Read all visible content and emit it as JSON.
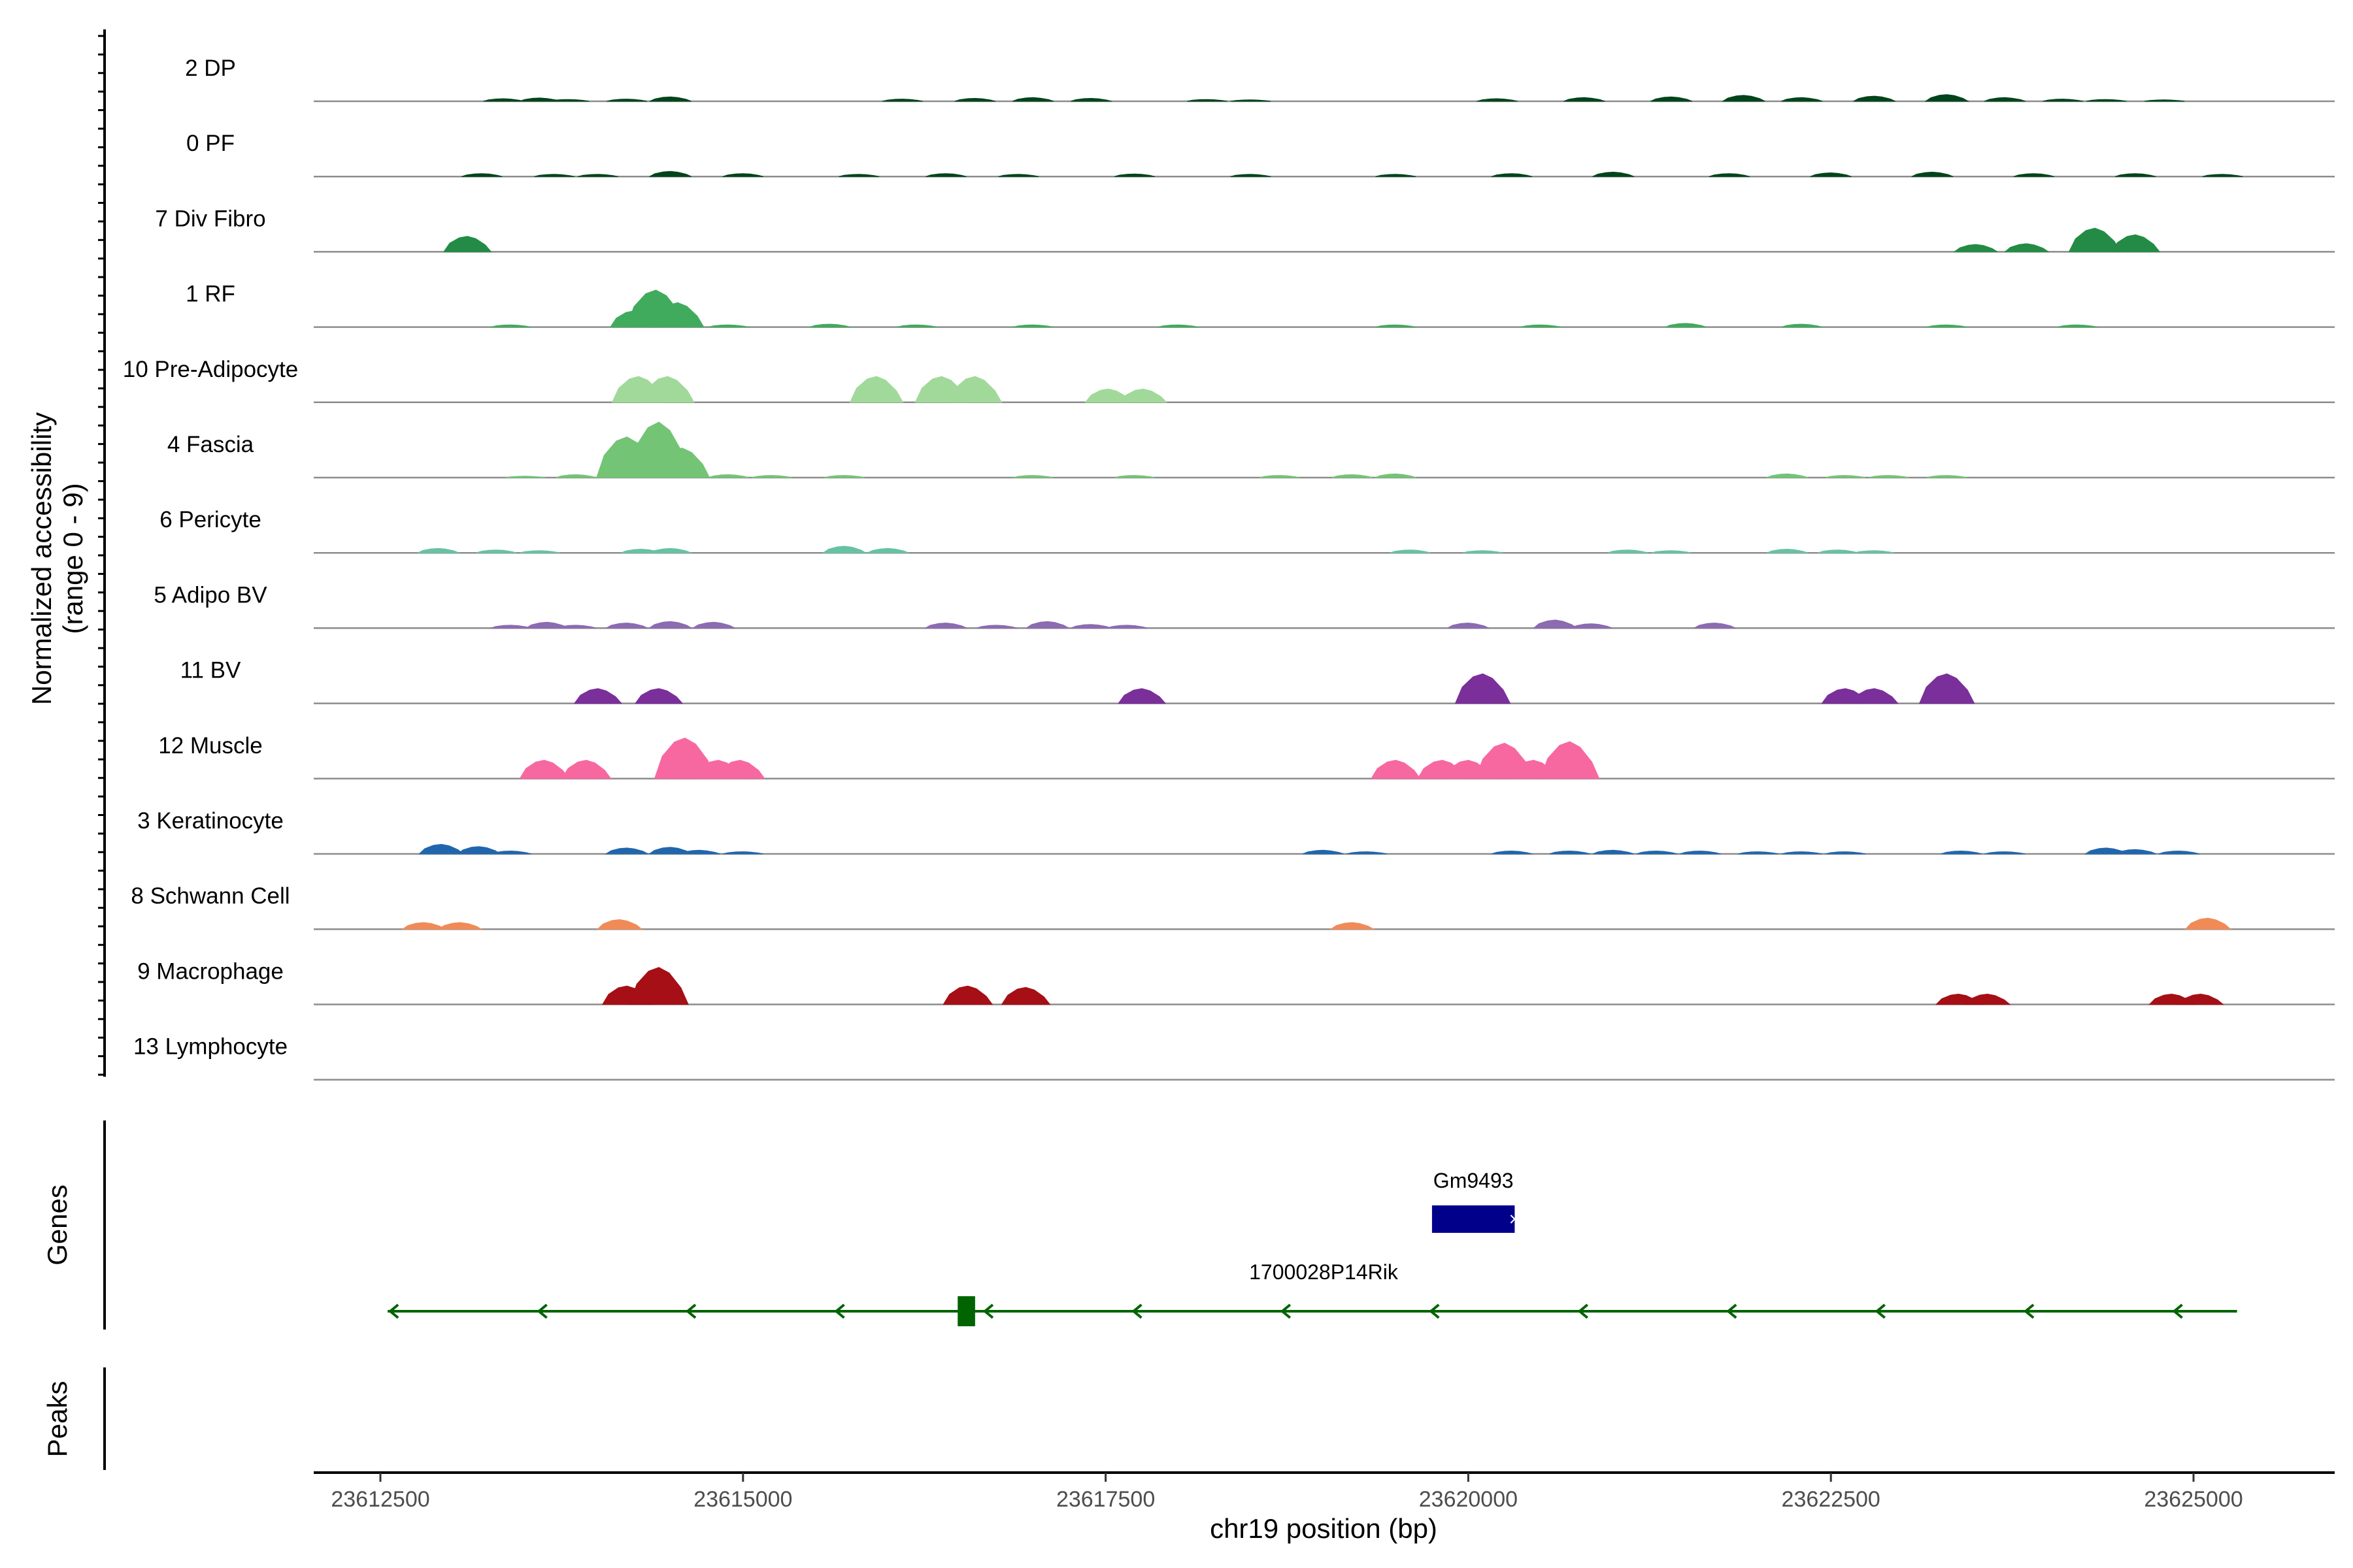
{
  "chart_data": {
    "type": "area",
    "title": "",
    "chromosome": "chr19",
    "xlabel": "chr19 position (bp)",
    "ylabel": "Normalized accessibility",
    "ylabel_range": "(range 0 - 9)",
    "xlim": [
      23612500,
      23626300
    ],
    "ylim": [
      0,
      9
    ],
    "x_ticks": [
      23612500,
      23615000,
      23617500,
      23620000,
      23622500,
      23625000
    ],
    "x_tick_labels": [
      "23612500",
      "23615000",
      "23617500",
      "23620000",
      "23622500",
      "23625000"
    ],
    "panel_labels": {
      "genes": "Genes",
      "peaks": "Peaks"
    },
    "tracks": [
      {
        "name": "2 DP",
        "color": "#00441b",
        "peaks": [
          [
            23613350,
            0.35
          ],
          [
            23613600,
            0.45
          ],
          [
            23613800,
            0.25
          ],
          [
            23614200,
            0.3
          ],
          [
            23614500,
            0.6
          ],
          [
            23616100,
            0.3
          ],
          [
            23616600,
            0.4
          ],
          [
            23617000,
            0.5
          ],
          [
            23617400,
            0.4
          ],
          [
            23618200,
            0.25
          ],
          [
            23618500,
            0.2
          ],
          [
            23620200,
            0.35
          ],
          [
            23620800,
            0.5
          ],
          [
            23621400,
            0.6
          ],
          [
            23621900,
            0.8
          ],
          [
            23622300,
            0.5
          ],
          [
            23622800,
            0.7
          ],
          [
            23623300,
            0.9
          ],
          [
            23623700,
            0.5
          ],
          [
            23624100,
            0.3
          ],
          [
            23624400,
            0.25
          ],
          [
            23624800,
            0.2
          ]
        ]
      },
      {
        "name": "0 PF",
        "color": "#00441b",
        "peaks": [
          [
            23613200,
            0.4
          ],
          [
            23613700,
            0.3
          ],
          [
            23614000,
            0.3
          ],
          [
            23614500,
            0.7
          ],
          [
            23615000,
            0.4
          ],
          [
            23615800,
            0.3
          ],
          [
            23616400,
            0.4
          ],
          [
            23616900,
            0.3
          ],
          [
            23617700,
            0.35
          ],
          [
            23618500,
            0.3
          ],
          [
            23619500,
            0.3
          ],
          [
            23620300,
            0.4
          ],
          [
            23621000,
            0.6
          ],
          [
            23621800,
            0.4
          ],
          [
            23622500,
            0.5
          ],
          [
            23623200,
            0.6
          ],
          [
            23623900,
            0.4
          ],
          [
            23624600,
            0.4
          ],
          [
            23625200,
            0.3
          ]
        ]
      },
      {
        "name": "7 Div Fibro",
        "color": "#238b45",
        "peaks": [
          [
            23613100,
            2.1
          ],
          [
            23623500,
            1.0
          ],
          [
            23623850,
            1.1
          ],
          [
            23624320,
            3.2
          ],
          [
            23624600,
            2.3
          ]
        ]
      },
      {
        "name": "1 RF",
        "color": "#41ab5d",
        "peaks": [
          [
            23613400,
            0.3
          ],
          [
            23614250,
            2.2
          ],
          [
            23614400,
            5.0
          ],
          [
            23614550,
            3.3
          ],
          [
            23614900,
            0.3
          ],
          [
            23615600,
            0.4
          ],
          [
            23616200,
            0.3
          ],
          [
            23617000,
            0.3
          ],
          [
            23618000,
            0.3
          ],
          [
            23619500,
            0.3
          ],
          [
            23620500,
            0.3
          ],
          [
            23621500,
            0.5
          ],
          [
            23622300,
            0.4
          ],
          [
            23623300,
            0.3
          ],
          [
            23624200,
            0.3
          ]
        ]
      },
      {
        "name": "10 Pre-Adipocyte",
        "color": "#a1d99b",
        "peaks": [
          [
            23614280,
            3.5
          ],
          [
            23614480,
            3.5
          ],
          [
            23615920,
            3.5
          ],
          [
            23616370,
            3.5
          ],
          [
            23616600,
            3.5
          ],
          [
            23617520,
            1.8
          ],
          [
            23617760,
            1.8
          ]
        ]
      },
      {
        "name": "4 Fascia",
        "color": "#74c476",
        "peaks": [
          [
            23613500,
            0.2
          ],
          [
            23613850,
            0.4
          ],
          [
            23614200,
            5.5
          ],
          [
            23614420,
            7.5
          ],
          [
            23614580,
            4.0
          ],
          [
            23614900,
            0.4
          ],
          [
            23615200,
            0.3
          ],
          [
            23615700,
            0.3
          ],
          [
            23617000,
            0.3
          ],
          [
            23617700,
            0.3
          ],
          [
            23618700,
            0.3
          ],
          [
            23619200,
            0.4
          ],
          [
            23619500,
            0.5
          ],
          [
            23622200,
            0.5
          ],
          [
            23622600,
            0.3
          ],
          [
            23622900,
            0.3
          ],
          [
            23623300,
            0.3
          ]
        ]
      },
      {
        "name": "6 Pericyte",
        "color": "#66c2a4",
        "peaks": [
          [
            23612900,
            0.6
          ],
          [
            23613300,
            0.4
          ],
          [
            23613600,
            0.3
          ],
          [
            23614300,
            0.5
          ],
          [
            23614500,
            0.6
          ],
          [
            23615700,
            0.9
          ],
          [
            23616000,
            0.6
          ],
          [
            23619600,
            0.4
          ],
          [
            23620100,
            0.3
          ],
          [
            23621100,
            0.4
          ],
          [
            23621400,
            0.3
          ],
          [
            23622200,
            0.5
          ],
          [
            23622550,
            0.4
          ],
          [
            23622800,
            0.3
          ]
        ]
      },
      {
        "name": "5 Adipo BV",
        "color": "#8c6bb1",
        "peaks": [
          [
            23613400,
            0.4
          ],
          [
            23613650,
            0.8
          ],
          [
            23613850,
            0.4
          ],
          [
            23614200,
            0.7
          ],
          [
            23614500,
            0.9
          ],
          [
            23614800,
            0.8
          ],
          [
            23616400,
            0.7
          ],
          [
            23616750,
            0.4
          ],
          [
            23617100,
            0.9
          ],
          [
            23617400,
            0.5
          ],
          [
            23617650,
            0.4
          ],
          [
            23620000,
            0.7
          ],
          [
            23620600,
            1.1
          ],
          [
            23620850,
            0.6
          ],
          [
            23621700,
            0.7
          ]
        ]
      },
      {
        "name": "11 BV",
        "color": "#7a2f9a",
        "peaks": [
          [
            23614000,
            2.0
          ],
          [
            23614420,
            2.0
          ],
          [
            23617750,
            2.0
          ],
          [
            23620100,
            4.0
          ],
          [
            23622600,
            2.0
          ],
          [
            23622800,
            2.0
          ],
          [
            23623300,
            4.0
          ]
        ]
      },
      {
        "name": "12 Muscle",
        "color": "#f768a1",
        "peaks": [
          [
            23613630,
            2.5
          ],
          [
            23613920,
            2.5
          ],
          [
            23614600,
            5.5
          ],
          [
            23614830,
            2.5
          ],
          [
            23614980,
            2.5
          ],
          [
            23619500,
            2.5
          ],
          [
            23619820,
            2.5
          ],
          [
            23620000,
            2.5
          ],
          [
            23620250,
            4.8
          ],
          [
            23620450,
            2.5
          ],
          [
            23620700,
            5.0
          ]
        ]
      },
      {
        "name": "3 Keratinocyte",
        "color": "#2166ac",
        "peaks": [
          [
            23612920,
            1.3
          ],
          [
            23613180,
            1.0
          ],
          [
            23613400,
            0.4
          ],
          [
            23614200,
            0.8
          ],
          [
            23614500,
            0.9
          ],
          [
            23614700,
            0.5
          ],
          [
            23615000,
            0.3
          ],
          [
            23619000,
            0.5
          ],
          [
            23619300,
            0.3
          ],
          [
            23620300,
            0.4
          ],
          [
            23620700,
            0.4
          ],
          [
            23621000,
            0.5
          ],
          [
            23621300,
            0.4
          ],
          [
            23621600,
            0.4
          ],
          [
            23622000,
            0.3
          ],
          [
            23622300,
            0.3
          ],
          [
            23622600,
            0.3
          ],
          [
            23623400,
            0.4
          ],
          [
            23623700,
            0.3
          ],
          [
            23624400,
            0.8
          ],
          [
            23624600,
            0.6
          ],
          [
            23624900,
            0.4
          ]
        ]
      },
      {
        "name": "8 Schwann Cell",
        "color": "#f08b58",
        "peaks": [
          [
            23612800,
            0.9
          ],
          [
            23613050,
            0.9
          ],
          [
            23614150,
            1.3
          ],
          [
            23619200,
            0.9
          ],
          [
            23625100,
            1.5
          ]
        ]
      },
      {
        "name": "9 Macrophage",
        "color": "#a50f15",
        "peaks": [
          [
            23614200,
            2.5
          ],
          [
            23614420,
            5.0
          ],
          [
            23616550,
            2.5
          ],
          [
            23616950,
            2.3
          ],
          [
            23623380,
            1.4
          ],
          [
            23623580,
            1.4
          ],
          [
            23624850,
            1.4
          ],
          [
            23625050,
            1.4
          ]
        ]
      },
      {
        "name": "13 Lymphocyte",
        "color": "#000000",
        "peaks": []
      }
    ],
    "genes": [
      {
        "name": "Gm9493",
        "color": "#00008b",
        "start": 23619750,
        "end": 23620320,
        "strand": "+"
      },
      {
        "name": "1700028P14Rik",
        "color": "#006400",
        "start": 23612550,
        "end": 23625300,
        "strand": "-",
        "exons": [
          [
            23616480,
            23616600
          ]
        ]
      }
    ]
  }
}
